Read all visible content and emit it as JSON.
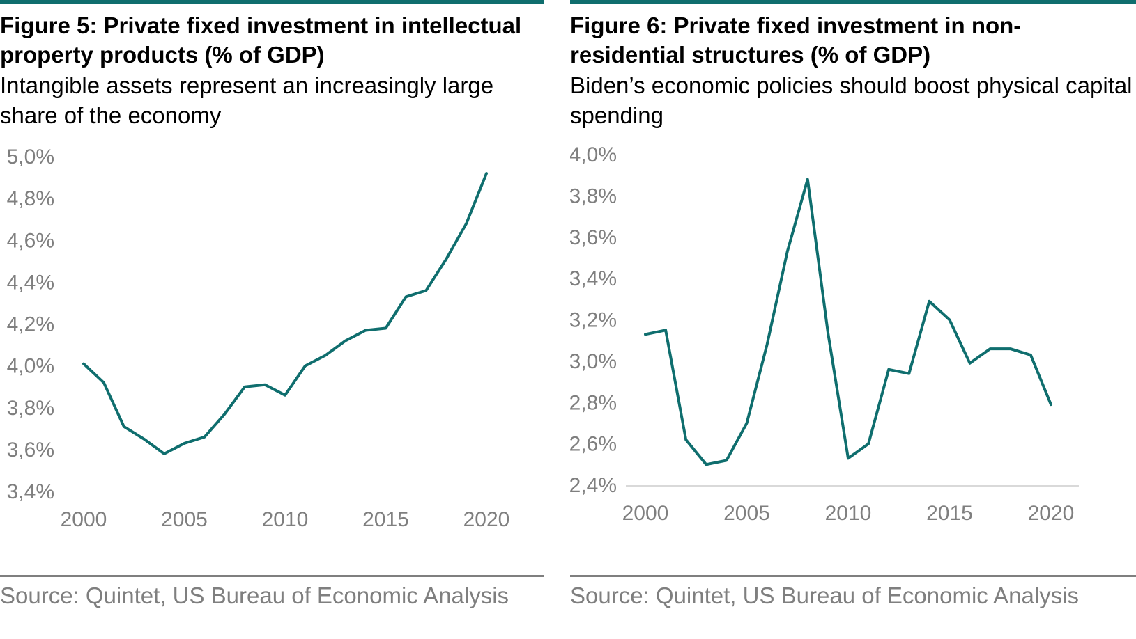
{
  "colors": {
    "accent": "#0f6e6e",
    "axis_text": "#7f7f7f",
    "rule": "#7f7f7f"
  },
  "panels": [
    {
      "title": "Figure 5: Private fixed investment in intellectual property products (% of GDP)",
      "subtitle": "Intangible assets represent an increasingly large share of the economy",
      "source": "Source: Quintet, US Bureau of Economic Analysis"
    },
    {
      "title": "Figure 6: Private fixed investment in non-residential structures (% of GDP)",
      "subtitle": "Biden’s economic policies should boost physical capital spending",
      "source": "Source: Quintet, US Bureau of Economic Analysis"
    }
  ],
  "chart_data": [
    {
      "type": "line",
      "title": "Figure 5: Private fixed investment in intellectual property products (% of GDP)",
      "x": [
        2000,
        2001,
        2002,
        2003,
        2004,
        2005,
        2006,
        2007,
        2008,
        2009,
        2010,
        2011,
        2012,
        2013,
        2014,
        2015,
        2016,
        2017,
        2018,
        2019,
        2020
      ],
      "series": [
        {
          "values": [
            4.01,
            3.92,
            3.71,
            3.65,
            3.58,
            3.63,
            3.66,
            3.77,
            3.9,
            3.91,
            3.86,
            4.0,
            4.05,
            4.12,
            4.17,
            4.18,
            4.33,
            4.36,
            4.51,
            4.68,
            4.92
          ]
        }
      ],
      "xticks": [
        "2000",
        "2005",
        "2010",
        "2015",
        "2020"
      ],
      "yticks": [
        "3,4%",
        "3,6%",
        "3,8%",
        "4,0%",
        "4,2%",
        "4,4%",
        "4,6%",
        "4,8%",
        "5,0%"
      ],
      "ylim": [
        3.4,
        5.0
      ],
      "xlim": [
        2000,
        2020
      ],
      "grid": false,
      "line_color": "#0f6e6e"
    },
    {
      "type": "line",
      "title": "Figure 6: Private fixed investment in non-residential structures (% of GDP)",
      "x": [
        2000,
        2001,
        2002,
        2003,
        2004,
        2005,
        2006,
        2007,
        2008,
        2009,
        2010,
        2011,
        2012,
        2013,
        2014,
        2015,
        2016,
        2017,
        2018,
        2019,
        2020
      ],
      "series": [
        {
          "values": [
            3.13,
            3.15,
            2.62,
            2.5,
            2.52,
            2.7,
            3.08,
            3.53,
            3.88,
            3.14,
            2.53,
            2.6,
            2.96,
            2.94,
            3.29,
            3.2,
            2.99,
            3.06,
            3.06,
            3.03,
            2.79
          ]
        }
      ],
      "xticks": [
        "2000",
        "2005",
        "2010",
        "2015",
        "2020"
      ],
      "yticks": [
        "2,4%",
        "2,6%",
        "2,8%",
        "3,0%",
        "3,2%",
        "3,4%",
        "3,6%",
        "3,8%",
        "4,0%"
      ],
      "ylim": [
        2.4,
        4.0
      ],
      "xlim": [
        2000,
        2020
      ],
      "grid": false,
      "line_color": "#0f6e6e"
    }
  ]
}
